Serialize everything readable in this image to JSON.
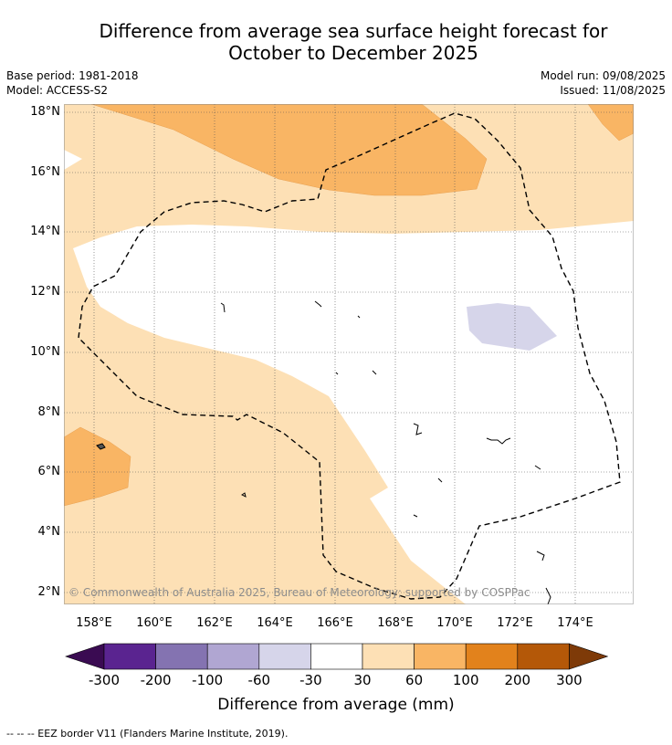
{
  "title_line1": "Difference from average sea surface height forecast for",
  "title_line2": "October to December 2025",
  "meta_left": {
    "base_period": "Base period: 1981-2018",
    "model": "Model: ACCESS-S2"
  },
  "meta_right": {
    "model_run": "Model run: 09/08/2025",
    "issued": "Issued: 11/08/2025"
  },
  "lat_labels": [
    "18°N",
    "16°N",
    "14°N",
    "12°N",
    "10°N",
    "8°N",
    "6°N",
    "4°N",
    "2°N"
  ],
  "lon_labels": [
    "158°E",
    "160°E",
    "162°E",
    "164°E",
    "166°E",
    "168°E",
    "170°E",
    "172°E",
    "174°E"
  ],
  "copyright": "© Commonwealth of Australia 2025, Bureau of Meteorology; supported by COSPPac",
  "colorbar": {
    "ticks": [
      "-300",
      "-200",
      "-100",
      "-60",
      "-30",
      "30",
      "60",
      "100",
      "200",
      "300"
    ],
    "colors": [
      "#3a0b52",
      "#5a2490",
      "#8473b1",
      "#b0a6d2",
      "#d6d5ea",
      "#ffffff",
      "#fde0b5",
      "#f9b564",
      "#e2821c",
      "#b45808",
      "#7e3a08"
    ],
    "title": "Difference from average (mm)"
  },
  "map_colors": {
    "band_30_60": "#fde0b5",
    "band_60_100": "#f9b564",
    "band_neg": "#d6d5ea",
    "grid": "#555555"
  },
  "footer": "--  --  -- EEZ border V11 (Flanders Marine Institute, 2019)."
}
